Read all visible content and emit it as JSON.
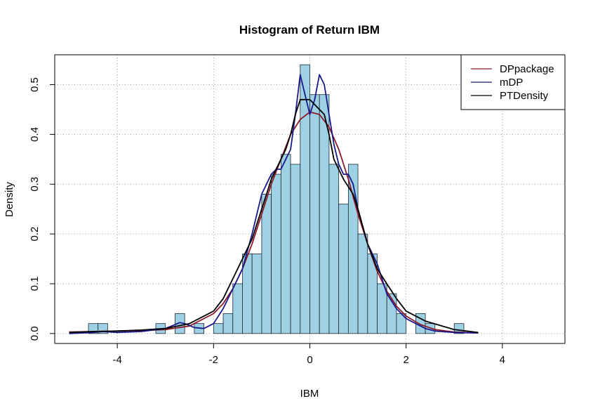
{
  "chart_data": {
    "type": "histogram",
    "title": "Histogram of Return IBM",
    "xlabel": "IBM",
    "ylabel": "Density",
    "xlim": [
      -5.3,
      5.3
    ],
    "ylim": [
      -0.02,
      0.56
    ],
    "x_ticks": [
      -4,
      -2,
      0,
      2,
      4
    ],
    "x_tick_labels": [
      "-4",
      "-2",
      "0",
      "2",
      "4"
    ],
    "y_ticks": [
      0.0,
      0.1,
      0.2,
      0.3,
      0.4,
      0.5
    ],
    "y_tick_labels": [
      "0.0",
      "0.1",
      "0.2",
      "0.3",
      "0.4",
      "0.5"
    ],
    "grid": "dotted, at ticks",
    "bar_color": "#9dd1e3",
    "bin_width": 0.2,
    "bins": [
      {
        "x0": -4.6,
        "density": 0.02
      },
      {
        "x0": -4.4,
        "density": 0.02
      },
      {
        "x0": -3.2,
        "density": 0.02
      },
      {
        "x0": -2.8,
        "density": 0.04
      },
      {
        "x0": -2.4,
        "density": 0.02
      },
      {
        "x0": -2.0,
        "density": 0.02
      },
      {
        "x0": -1.8,
        "density": 0.04
      },
      {
        "x0": -1.6,
        "density": 0.1
      },
      {
        "x0": -1.4,
        "density": 0.16
      },
      {
        "x0": -1.2,
        "density": 0.16
      },
      {
        "x0": -1.0,
        "density": 0.28
      },
      {
        "x0": -0.8,
        "density": 0.32
      },
      {
        "x0": -0.6,
        "density": 0.36
      },
      {
        "x0": -0.4,
        "density": 0.34
      },
      {
        "x0": -0.2,
        "density": 0.54
      },
      {
        "x0": 0.0,
        "density": 0.48
      },
      {
        "x0": 0.2,
        "density": 0.48
      },
      {
        "x0": 0.4,
        "density": 0.34
      },
      {
        "x0": 0.6,
        "density": 0.26
      },
      {
        "x0": 0.8,
        "density": 0.34
      },
      {
        "x0": 1.0,
        "density": 0.2
      },
      {
        "x0": 1.2,
        "density": 0.16
      },
      {
        "x0": 1.4,
        "density": 0.1
      },
      {
        "x0": 1.6,
        "density": 0.08
      },
      {
        "x0": 1.8,
        "density": 0.04
      },
      {
        "x0": 2.2,
        "density": 0.04
      },
      {
        "x0": 2.4,
        "density": 0.02
      },
      {
        "x0": 3.0,
        "density": 0.02
      }
    ],
    "series": [
      {
        "name": "DPpackage",
        "color": "#8b1a2a",
        "x": [
          -5.0,
          -4.5,
          -4.0,
          -3.5,
          -3.0,
          -2.5,
          -2.0,
          -1.8,
          -1.6,
          -1.4,
          -1.2,
          -1.0,
          -0.8,
          -0.6,
          -0.4,
          -0.2,
          0.0,
          0.2,
          0.4,
          0.6,
          0.8,
          1.0,
          1.2,
          1.4,
          1.6,
          1.8,
          2.0,
          2.3,
          2.6,
          3.0,
          3.5
        ],
        "y": [
          0.003,
          0.004,
          0.005,
          0.006,
          0.008,
          0.015,
          0.04,
          0.06,
          0.09,
          0.13,
          0.18,
          0.24,
          0.3,
          0.35,
          0.4,
          0.43,
          0.445,
          0.44,
          0.415,
          0.37,
          0.31,
          0.24,
          0.18,
          0.125,
          0.085,
          0.055,
          0.035,
          0.018,
          0.008,
          0.003,
          0.001
        ]
      },
      {
        "name": "mDP",
        "color": "#1a1a8c",
        "x": [
          -5.0,
          -4.5,
          -4.3,
          -4.0,
          -3.5,
          -3.0,
          -2.8,
          -2.7,
          -2.6,
          -2.4,
          -2.2,
          -2.0,
          -1.8,
          -1.6,
          -1.4,
          -1.2,
          -1.0,
          -0.8,
          -0.7,
          -0.6,
          -0.5,
          -0.4,
          -0.3,
          -0.2,
          -0.1,
          0.0,
          0.1,
          0.2,
          0.3,
          0.4,
          0.5,
          0.6,
          0.7,
          0.8,
          0.9,
          1.0,
          1.2,
          1.4,
          1.6,
          1.8,
          2.0,
          2.2,
          2.4,
          2.6,
          3.0,
          3.5
        ],
        "y": [
          0.0,
          0.002,
          0.004,
          0.002,
          0.004,
          0.01,
          0.018,
          0.022,
          0.02,
          0.012,
          0.01,
          0.02,
          0.05,
          0.09,
          0.13,
          0.2,
          0.28,
          0.32,
          0.33,
          0.33,
          0.35,
          0.37,
          0.44,
          0.52,
          0.48,
          0.44,
          0.47,
          0.52,
          0.5,
          0.44,
          0.38,
          0.34,
          0.32,
          0.32,
          0.3,
          0.25,
          0.18,
          0.14,
          0.08,
          0.05,
          0.03,
          0.02,
          0.01,
          0.005,
          0.002,
          0.001
        ]
      },
      {
        "name": "PTDensity",
        "color": "#000000",
        "x": [
          -5.0,
          -4.5,
          -4.0,
          -3.5,
          -3.0,
          -2.5,
          -2.0,
          -1.8,
          -1.6,
          -1.4,
          -1.2,
          -1.0,
          -0.9,
          -0.8,
          -0.6,
          -0.5,
          -0.4,
          -0.3,
          -0.2,
          -0.1,
          0.0,
          0.1,
          0.2,
          0.3,
          0.4,
          0.5,
          0.7,
          0.9,
          1.0,
          1.2,
          1.4,
          1.6,
          1.8,
          2.0,
          2.4,
          3.0,
          3.5
        ],
        "y": [
          0.002,
          0.004,
          0.005,
          0.007,
          0.01,
          0.02,
          0.045,
          0.07,
          0.11,
          0.15,
          0.19,
          0.25,
          0.28,
          0.31,
          0.35,
          0.37,
          0.4,
          0.44,
          0.47,
          0.47,
          0.47,
          0.46,
          0.45,
          0.44,
          0.4,
          0.35,
          0.31,
          0.28,
          0.25,
          0.18,
          0.13,
          0.1,
          0.07,
          0.045,
          0.025,
          0.008,
          0.002
        ]
      }
    ],
    "legend": {
      "placement": "top-right",
      "entries": [
        "DPpackage",
        "mDP",
        "PTDensity"
      ]
    }
  }
}
